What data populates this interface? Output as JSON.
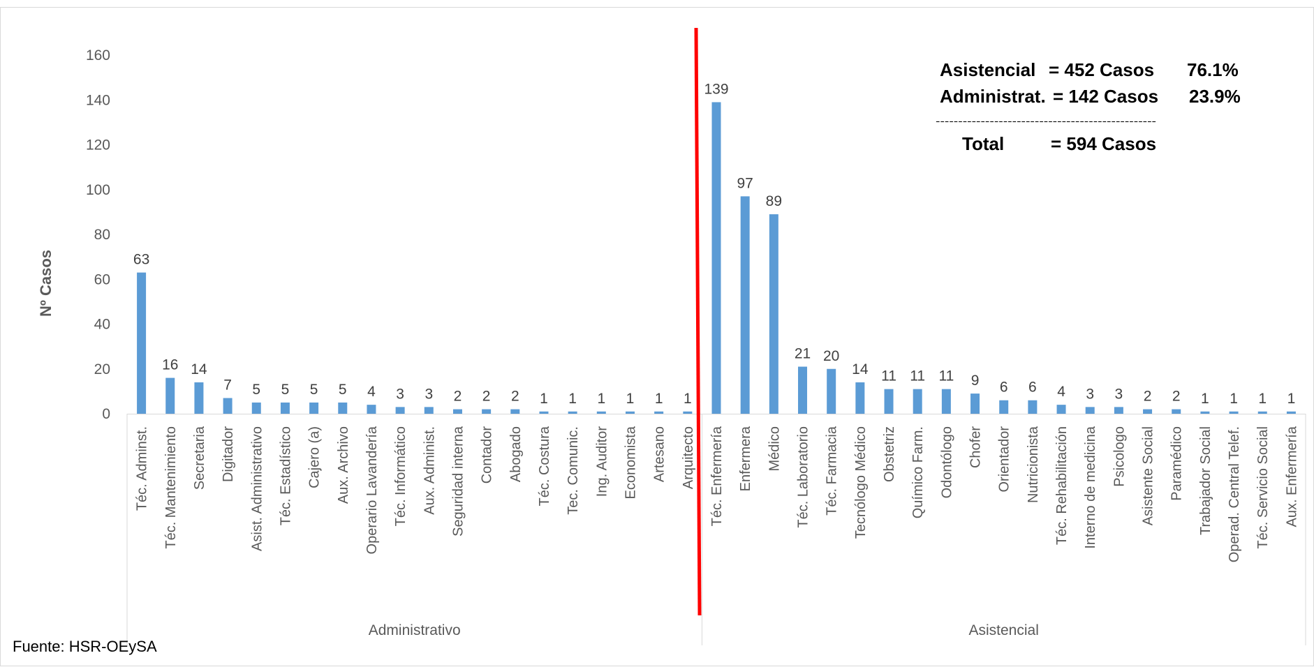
{
  "chart_data": {
    "type": "bar",
    "ylabel": "Nº Casos",
    "ylim": [
      0,
      160
    ],
    "yticks": [
      0,
      20,
      40,
      60,
      80,
      100,
      120,
      140,
      160
    ],
    "grid": false,
    "show_data_labels": true,
    "bar_color": "#5b9bd5",
    "divider_color": "#ff0000",
    "groups": [
      {
        "name": "Administrativo",
        "categories": [
          "Téc. Adminst.",
          "Téc. Mantenimiento",
          "Secretaria",
          "Digitador",
          "Asist. Administrativo",
          "Téc. Estadístico",
          "Cajero (a)",
          "Aux. Archivo",
          "Operario Lavandería",
          "Téc. Informático",
          "Aux. Administ.",
          "Seguridad interna",
          "Contador",
          "Abogado",
          "Téc. Costura",
          "Tec. Comunic.",
          "Ing. Auditor",
          "Economista",
          "Artesano",
          "Arquitecto"
        ],
        "values": [
          63,
          16,
          14,
          7,
          5,
          5,
          5,
          5,
          4,
          3,
          3,
          2,
          2,
          2,
          1,
          1,
          1,
          1,
          1,
          1
        ]
      },
      {
        "name": "Asistencial",
        "categories": [
          "Téc. Enfermería",
          "Enfermera",
          "Médico",
          "Téc. Laboratorio",
          "Téc. Farmacia",
          "Tecnólogo Médico",
          "Obstetriz",
          "Químico Farm.",
          "Odontólogo",
          "Chofer",
          "Orientador",
          "Nutricionista",
          "Téc. Rehabilitación",
          "Interno de medicina",
          "Psicologo",
          "Asistente Social",
          "Paramédico",
          "Trabajador Social",
          "Operad. Central Telef.",
          "Téc. Servicio Social",
          "Aux. Enfermería"
        ],
        "values": [
          139,
          97,
          89,
          21,
          20,
          14,
          11,
          11,
          11,
          9,
          6,
          6,
          4,
          3,
          3,
          2,
          2,
          1,
          1,
          1,
          1
        ]
      }
    ],
    "annotations": {
      "rows": [
        {
          "label": "Asistencial",
          "eq": "= 452 Casos",
          "pct": "76.1%"
        },
        {
          "label": "Administrat.",
          "eq": "= 142 Casos",
          "pct": "23.9%"
        }
      ],
      "separator": "-------------------------------------------------",
      "total": {
        "label": "Total",
        "eq": "= 594 Casos"
      }
    }
  },
  "footer": {
    "source": "Fuente:  HSR-OEySA"
  }
}
